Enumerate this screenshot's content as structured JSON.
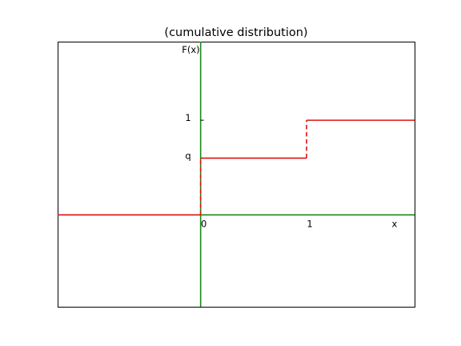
{
  "chart_data": {
    "type": "line",
    "title": "(cumulative distribution)",
    "xlabel": "x",
    "ylabel": "F(x)",
    "q": 0.6,
    "xlim": [
      -1.35,
      2.02
    ],
    "ylim": [
      -0.97,
      1.83
    ],
    "x_ticks": [
      {
        "value": 0,
        "label": "0"
      },
      {
        "value": 1,
        "label": "1"
      }
    ],
    "y_ticks": [
      {
        "value": 1,
        "label": "1"
      },
      {
        "value": 0.6,
        "label": "q"
      }
    ],
    "series": [
      {
        "style": "solid",
        "color": "#e01010",
        "segments": [
          [
            [
              -1.35,
              0
            ],
            [
              0,
              0
            ]
          ],
          [
            [
              0,
              0.6
            ],
            [
              1,
              0.6
            ]
          ],
          [
            [
              1,
              1
            ],
            [
              2.02,
              1
            ]
          ]
        ]
      },
      {
        "style": "dashed",
        "color": "#e01010",
        "segments": [
          [
            [
              0,
              0
            ],
            [
              0,
              0.6
            ]
          ],
          [
            [
              1,
              0.6
            ],
            [
              1,
              1
            ]
          ]
        ]
      }
    ],
    "axes_lines": {
      "color": "#1a8a1a",
      "x_axis": [
        [
          0,
          0
        ],
        [
          2.02,
          0
        ]
      ],
      "y_axis": [
        [
          0,
          -0.97
        ],
        [
          0,
          1.83
        ]
      ]
    }
  }
}
